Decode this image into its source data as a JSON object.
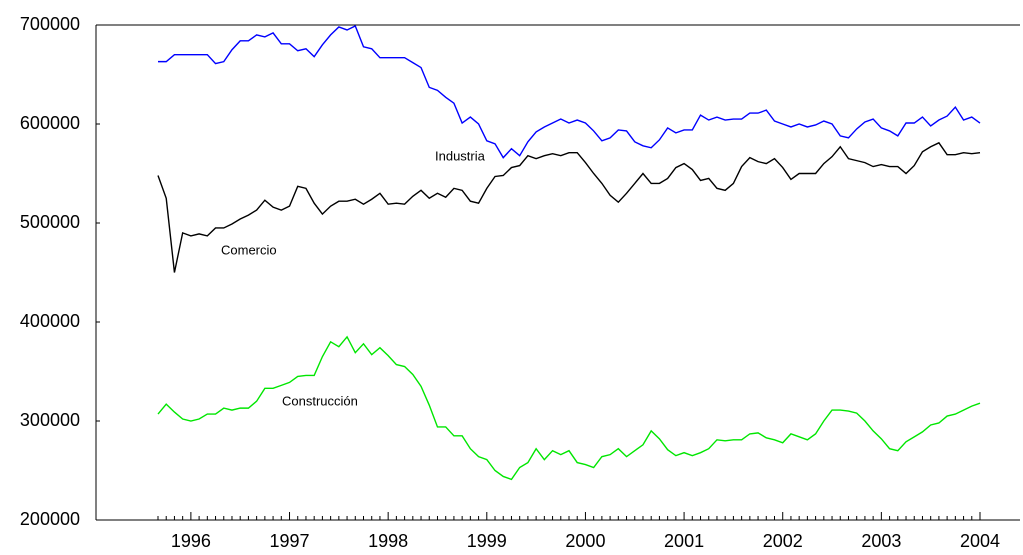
{
  "chart_data": {
    "type": "line",
    "categories": [
      null,
      null,
      null,
      null,
      "1996",
      null,
      null,
      null,
      null,
      null,
      null,
      null,
      null,
      null,
      null,
      null,
      "1997",
      null,
      null,
      null,
      null,
      null,
      null,
      null,
      null,
      null,
      null,
      null,
      "1998",
      null,
      null,
      null,
      null,
      null,
      null,
      null,
      null,
      null,
      null,
      null,
      "1999",
      null,
      null,
      null,
      null,
      null,
      null,
      null,
      null,
      null,
      null,
      null,
      "2000",
      null,
      null,
      null,
      null,
      null,
      null,
      null,
      null,
      null,
      null,
      null,
      "2001",
      null,
      null,
      null,
      null,
      null,
      null,
      null,
      null,
      null,
      null,
      null,
      "2002",
      null,
      null,
      null,
      null,
      null,
      null,
      null,
      null,
      null,
      null,
      null,
      "2003",
      null,
      null,
      null,
      null,
      null,
      null,
      null,
      null,
      null,
      null,
      null,
      "2004"
    ],
    "series": [
      {
        "name": "Industria",
        "color": "#0000ff",
        "values": [
          663000,
          663000,
          670000,
          670000,
          670000,
          670000,
          670000,
          661000,
          663000,
          675000,
          684000,
          684000,
          690000,
          688000,
          692000,
          681000,
          681000,
          674000,
          676000,
          668000,
          680000,
          690000,
          698000,
          695000,
          699000,
          678000,
          676000,
          667000,
          667000,
          667000,
          667000,
          662000,
          657000,
          637000,
          634000,
          627000,
          621000,
          601000,
          607000,
          600000,
          583000,
          580000,
          566000,
          575000,
          568000,
          582000,
          592000,
          597000,
          601000,
          605000,
          601000,
          604000,
          601000,
          593000,
          583000,
          586000,
          594000,
          593000,
          582000,
          578000,
          576000,
          584000,
          596000,
          591000,
          594000,
          594000,
          609000,
          604000,
          607000,
          604000,
          605000,
          605000,
          611000,
          611000,
          614000,
          603000,
          600000,
          597000,
          600000,
          597000,
          599000,
          603000,
          600000,
          588000,
          586000,
          595000,
          602000,
          605000,
          596000,
          593000,
          588000,
          601000,
          601000,
          607000,
          598000,
          604000,
          608000,
          617000,
          604000,
          607000,
          601000
        ]
      },
      {
        "name": "Comercio",
        "color": "#000000",
        "values": [
          548000,
          525000,
          450000,
          490000,
          487000,
          489000,
          487000,
          495000,
          495000,
          499000,
          504000,
          508000,
          513000,
          523000,
          516000,
          513000,
          517000,
          537000,
          535000,
          520000,
          509000,
          517000,
          522000,
          522000,
          524000,
          519000,
          524000,
          530000,
          519000,
          520000,
          519000,
          527000,
          533000,
          525000,
          530000,
          526000,
          535000,
          533000,
          522000,
          520000,
          535000,
          547000,
          548000,
          556000,
          558000,
          568000,
          565000,
          568000,
          570000,
          568000,
          571000,
          571000,
          561000,
          550000,
          540000,
          528000,
          521000,
          530000,
          540000,
          550000,
          540000,
          540000,
          545000,
          556000,
          560000,
          554000,
          543000,
          545000,
          535000,
          533000,
          540000,
          557000,
          566000,
          562000,
          560000,
          565000,
          556000,
          544000,
          550000,
          550000,
          550000,
          560000,
          567000,
          577000,
          565000,
          563000,
          561000,
          557000,
          559000,
          557000,
          557000,
          550000,
          558000,
          572000,
          577000,
          581000,
          569000,
          569000,
          571000,
          570000,
          571000
        ]
      },
      {
        "name": "Construcción",
        "color": "#00e600",
        "values": [
          307000,
          317000,
          309000,
          302000,
          300000,
          302000,
          307000,
          307000,
          313000,
          311000,
          313000,
          313000,
          320000,
          333000,
          333000,
          336000,
          339000,
          345000,
          346000,
          346000,
          365000,
          380000,
          375000,
          385000,
          369000,
          378000,
          367000,
          374000,
          366000,
          357000,
          355000,
          347000,
          335000,
          316000,
          294000,
          294000,
          285000,
          285000,
          272000,
          264000,
          261000,
          250000,
          244000,
          241000,
          253000,
          258000,
          272000,
          261000,
          270000,
          266000,
          270000,
          258000,
          256000,
          253000,
          264000,
          266000,
          272000,
          264000,
          270000,
          276000,
          290000,
          282000,
          271000,
          265000,
          268000,
          265000,
          268000,
          272000,
          281000,
          280000,
          281000,
          281000,
          287000,
          288000,
          283000,
          281000,
          278000,
          287000,
          284000,
          281000,
          287000,
          300000,
          311000,
          311000,
          310000,
          308000,
          300000,
          290000,
          282000,
          272000,
          270000,
          279000,
          284000,
          289000,
          296000,
          298000,
          305000,
          307000,
          311000,
          315000,
          318000
        ]
      }
    ],
    "ylim": [
      200000,
      700000
    ],
    "yticks": [
      200000,
      300000,
      400000,
      500000,
      600000,
      700000
    ],
    "grid": false
  }
}
